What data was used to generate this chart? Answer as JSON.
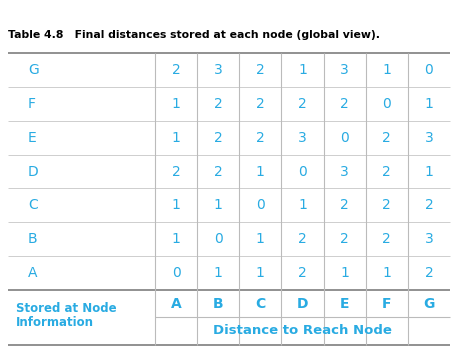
{
  "title_top": "Distance to Reach Node",
  "col_header_label_line1": "Information",
  "col_header_label_line2": "Stored at Node",
  "col_nodes": [
    "A",
    "B",
    "C",
    "D",
    "E",
    "F",
    "G"
  ],
  "row_nodes": [
    "A",
    "B",
    "C",
    "D",
    "E",
    "F",
    "G"
  ],
  "table_data": [
    [
      0,
      1,
      1,
      2,
      1,
      1,
      2
    ],
    [
      1,
      0,
      1,
      2,
      2,
      2,
      3
    ],
    [
      1,
      1,
      0,
      1,
      2,
      2,
      2
    ],
    [
      2,
      2,
      1,
      0,
      3,
      2,
      1
    ],
    [
      1,
      2,
      2,
      3,
      0,
      2,
      3
    ],
    [
      1,
      2,
      2,
      2,
      2,
      0,
      1
    ],
    [
      2,
      3,
      2,
      1,
      3,
      1,
      0
    ]
  ],
  "caption": "Table 4.8   Final distances stored at each node (global view).",
  "header_color": "#29ABE2",
  "data_color": "#29ABE2",
  "row_label_color": "#29ABE2",
  "bg_color": "#FFFFFF",
  "thick_line_color": "#888888",
  "thin_line_color": "#BBBBBB",
  "caption_color": "#000000",
  "figsize": [
    4.57,
    3.59
  ],
  "dpi": 100
}
